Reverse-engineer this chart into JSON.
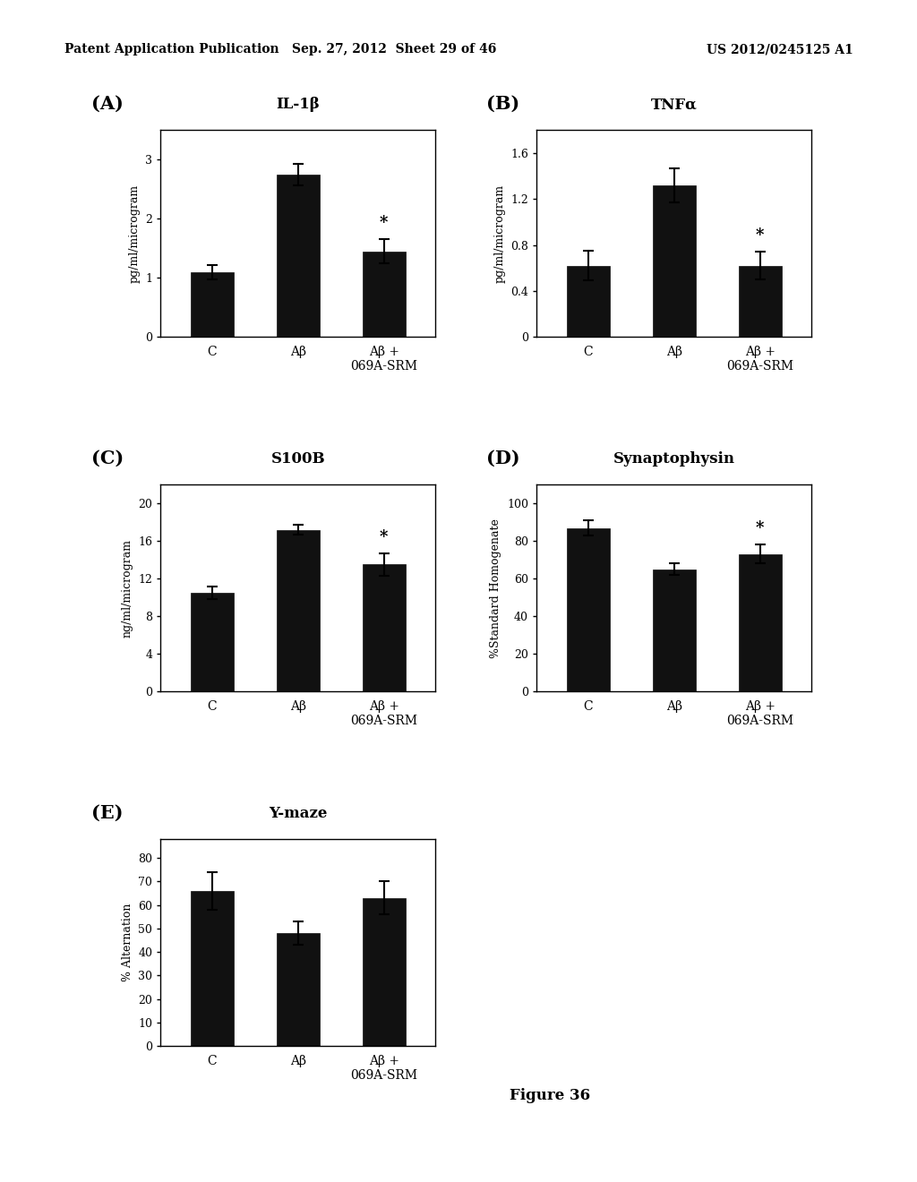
{
  "panel_A": {
    "title": "IL-1β",
    "label": "(A)",
    "ylabel": "pg/ml/microgram",
    "categories": [
      "C",
      "Aβ",
      "Aβ +\n069A-SRM"
    ],
    "values": [
      1.1,
      2.75,
      1.45
    ],
    "errors": [
      0.12,
      0.18,
      0.2
    ],
    "ylim": [
      0,
      3.5
    ],
    "yticks": [
      0,
      1,
      2,
      3
    ],
    "star_idx": 2
  },
  "panel_B": {
    "title": "TNFα",
    "label": "(B)",
    "ylabel": "pg/ml/microgram",
    "categories": [
      "C",
      "Aβ",
      "Aβ +\n069A-SRM"
    ],
    "values": [
      0.62,
      1.32,
      0.62
    ],
    "errors": [
      0.13,
      0.15,
      0.12
    ],
    "ylim": [
      0,
      1.8
    ],
    "yticks": [
      0,
      0.4,
      0.8,
      1.2,
      1.6
    ],
    "star_idx": 2
  },
  "panel_C": {
    "title": "S100B",
    "label": "(C)",
    "ylabel": "ng/ml/microgram",
    "categories": [
      "C",
      "Aβ",
      "Aβ +\n069A-SRM"
    ],
    "values": [
      10.5,
      17.2,
      13.5
    ],
    "errors": [
      0.7,
      0.5,
      1.2
    ],
    "ylim": [
      0,
      22
    ],
    "yticks": [
      0,
      4,
      8,
      12,
      16,
      20
    ],
    "star_idx": 2
  },
  "panel_D": {
    "title": "Synaptophysin",
    "label": "(D)",
    "ylabel": "%Standard Homogenate",
    "categories": [
      "C",
      "Aβ",
      "Aβ +\n069A-SRM"
    ],
    "values": [
      87,
      65,
      73
    ],
    "errors": [
      4,
      3,
      5
    ],
    "ylim": [
      0,
      110
    ],
    "yticks": [
      0,
      20,
      40,
      60,
      80,
      100
    ],
    "star_idx": 2
  },
  "panel_E": {
    "title": "Y-maze",
    "label": "(E)",
    "ylabel": "% Alternation",
    "categories": [
      "C",
      "Aβ",
      "Aβ +\n069A-SRM"
    ],
    "values": [
      66,
      48,
      63
    ],
    "errors": [
      8,
      5,
      7
    ],
    "ylim": [
      0,
      88
    ],
    "yticks": [
      0,
      10,
      20,
      30,
      40,
      50,
      60,
      70,
      80
    ],
    "star_idx": -1
  },
  "figure_caption": "Figure 36",
  "header_left": "Patent Application Publication",
  "header_center": "Sep. 27, 2012  Sheet 29 of 46",
  "header_right": "US 2012/0245125 A1",
  "bar_color": "#111111",
  "bar_width": 0.5,
  "background_color": "#ffffff"
}
